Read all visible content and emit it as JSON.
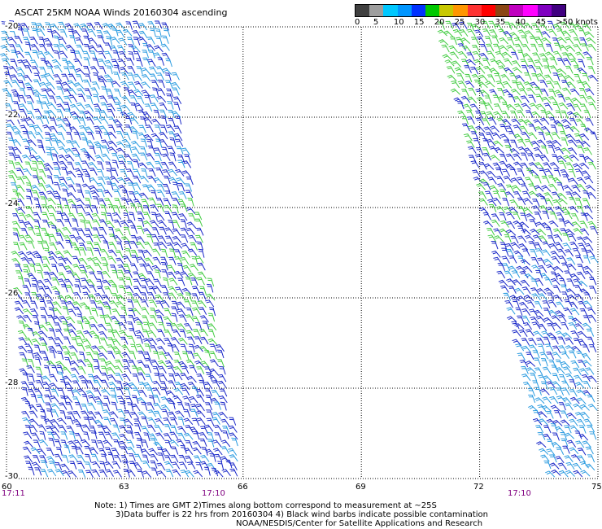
{
  "title": "ASCAT 25KM NOAA Winds 20160304 ascending",
  "colorbar": {
    "colors": [
      "#404040",
      "#9e9e9e",
      "#00c8ff",
      "#0096ff",
      "#0032ff",
      "#00c800",
      "#c8c800",
      "#ff9600",
      "#ff3232",
      "#ff0000",
      "#8b4513",
      "#c000c0",
      "#ff00ff",
      "#8000c0",
      "#400080"
    ],
    "labels": [
      "0",
      "5",
      "10",
      "15",
      "20",
      "25",
      "30",
      "35",
      "40",
      "45",
      ">50 knots"
    ]
  },
  "map": {
    "lon_range": [
      60,
      75
    ],
    "lat_range": [
      -30,
      -20
    ],
    "lat_ticks": [
      "-20",
      "-22",
      "-24",
      "-26",
      "-28",
      "-30"
    ],
    "lon_ticks": [
      "60",
      "63",
      "66",
      "69",
      "72",
      "75"
    ],
    "grid": "dotted",
    "swaths": [
      {
        "name": "west",
        "time_start": "17:11",
        "time_end": "17:10"
      },
      {
        "name": "east",
        "time": "17:10"
      }
    ],
    "dominant_barb_colors": [
      "#1a28c8",
      "#2a9be0",
      "#44cc44"
    ]
  },
  "notes": [
    "Note: 1) Times are GMT 2)Times along bottom correspond to measurement at ~25S",
    "3)Data buffer is 22 hrs from 20160304 4) Black wind barbs indicate possible contamination",
    "NOAA/NESDIS/Center for Satellite Applications and Research"
  ]
}
